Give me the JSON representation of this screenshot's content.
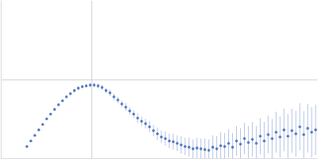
{
  "chart_data": {
    "type": "scatter",
    "x": [
      33,
      38,
      43,
      48,
      53,
      58,
      63,
      68,
      73,
      78,
      83,
      88,
      93,
      98,
      103,
      108,
      113,
      118,
      123,
      128,
      133,
      138,
      143,
      148,
      153,
      158,
      163,
      168,
      173,
      178,
      183,
      188,
      193,
      198,
      203,
      208,
      213,
      218,
      223,
      228,
      233,
      238,
      243,
      248,
      253,
      258,
      263,
      268,
      273,
      278,
      283,
      288,
      293,
      298,
      303,
      308,
      313,
      318,
      323,
      328,
      333,
      338,
      343,
      348,
      353,
      358,
      363,
      368,
      373,
      378,
      383,
      388,
      393,
      398
    ],
    "values": [
      15,
      22,
      29,
      36,
      43,
      50,
      56,
      62,
      68,
      73,
      78,
      82,
      86,
      89,
      91,
      92,
      93,
      93,
      92,
      90,
      86,
      83,
      78,
      74,
      69,
      65,
      60,
      56,
      51,
      47,
      44,
      40,
      35,
      31,
      27,
      25,
      22,
      21,
      19,
      17,
      15,
      14,
      12,
      13,
      12,
      11,
      10,
      14,
      12,
      16,
      15,
      19,
      14,
      22,
      18,
      25,
      20,
      24,
      19,
      28,
      22,
      30,
      25,
      33,
      27,
      36,
      28,
      35,
      31,
      40,
      30,
      38,
      33,
      36
    ],
    "errors": [
      1,
      1,
      1,
      1,
      1,
      1,
      1,
      1,
      1,
      1,
      1,
      2,
      2,
      2,
      2,
      2,
      3,
      3,
      3,
      3,
      3,
      4,
      4,
      4,
      4,
      5,
      5,
      5,
      6,
      6,
      6,
      7,
      7,
      8,
      8,
      9,
      9,
      10,
      10,
      11,
      11,
      12,
      12,
      13,
      13,
      14,
      14,
      15,
      16,
      17,
      17,
      18,
      18,
      19,
      20,
      20,
      21,
      22,
      22,
      23,
      24,
      24,
      25,
      26,
      26,
      27,
      28,
      28,
      29,
      30,
      30,
      31,
      32,
      32
    ],
    "color": "#3a63b5",
    "marker": "circle",
    "xlim": [
      0,
      400
    ],
    "xticks": [
      115
    ],
    "ylim": [
      0,
      200
    ],
    "yticks": [
      100
    ],
    "grid": true,
    "tick_labels": false
  }
}
